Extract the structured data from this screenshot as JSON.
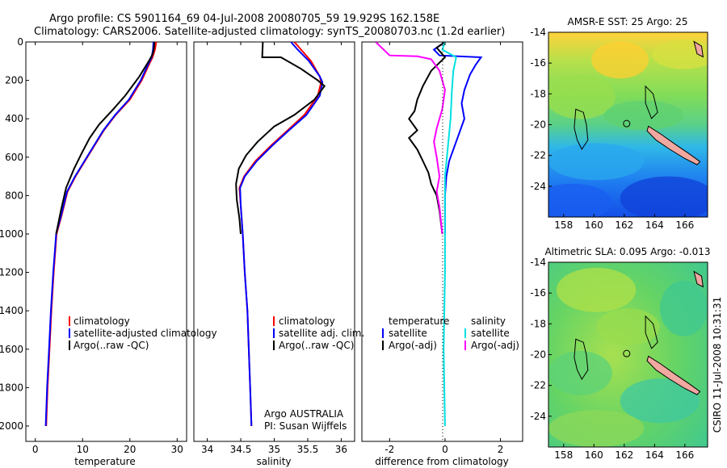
{
  "header": {
    "line1": "Argo profile: CS 5901164_69 04-Jul-2008 20080705_59 19.929S 162.158E",
    "line2": "Climatology: CARS2006. Satellite-adjusted climatology: synTS_20080703.nc (1.2d earlier)"
  },
  "footer": {
    "credit": "CSIRO 11-Jul-2008 10:31:31"
  },
  "chart_data": [
    {
      "id": "temperature",
      "type": "line",
      "xlabel": "temperature",
      "ylabel": "",
      "xlim": [
        -2,
        32
      ],
      "ylim": [
        2080,
        0
      ],
      "xticks": [
        0,
        10,
        20,
        30
      ],
      "yticks": [
        0,
        200,
        400,
        600,
        800,
        1000,
        1200,
        1400,
        1600,
        1800,
        2000
      ],
      "legend": {
        "placement": "lower-middle",
        "entries": [
          "climatology",
          "satellite-adjusted climatology",
          "Argo(..raw -QC)"
        ]
      },
      "series": [
        {
          "name": "climatology",
          "color": "#ff0000",
          "points": [
            [
              25.6,
              0
            ],
            [
              25.3,
              40
            ],
            [
              24.8,
              80
            ],
            [
              24.0,
              120
            ],
            [
              22.5,
              200
            ],
            [
              20.0,
              300
            ],
            [
              17.0,
              380
            ],
            [
              14.5,
              460
            ],
            [
              12.5,
              540
            ],
            [
              10.5,
              620
            ],
            [
              8.5,
              700
            ],
            [
              6.8,
              780
            ],
            [
              5.6,
              900
            ],
            [
              4.5,
              1000
            ],
            [
              3.9,
              1200
            ],
            [
              3.4,
              1400
            ],
            [
              3.0,
              1600
            ],
            [
              2.6,
              1800
            ],
            [
              2.3,
              2000
            ]
          ]
        },
        {
          "name": "satellite-adjusted climatology",
          "color": "#0000ff",
          "points": [
            [
              25.0,
              0
            ],
            [
              24.9,
              40
            ],
            [
              24.6,
              80
            ],
            [
              23.8,
              120
            ],
            [
              22.3,
              200
            ],
            [
              19.8,
              300
            ],
            [
              16.9,
              380
            ],
            [
              14.4,
              460
            ],
            [
              12.4,
              540
            ],
            [
              10.4,
              620
            ],
            [
              8.4,
              700
            ],
            [
              6.7,
              780
            ],
            [
              5.5,
              900
            ],
            [
              4.4,
              1000
            ],
            [
              3.8,
              1200
            ],
            [
              3.3,
              1400
            ],
            [
              2.9,
              1600
            ],
            [
              2.5,
              1800
            ],
            [
              2.2,
              2000
            ]
          ]
        },
        {
          "name": "Argo(..raw -QC)",
          "color": "#000000",
          "points": [
            [
              25.2,
              0
            ],
            [
              25.1,
              30
            ],
            [
              24.9,
              60
            ],
            [
              24.0,
              100
            ],
            [
              22.0,
              180
            ],
            [
              19.0,
              280
            ],
            [
              16.5,
              350
            ],
            [
              13.5,
              430
            ],
            [
              11.5,
              500
            ],
            [
              9.8,
              580
            ],
            [
              8.2,
              660
            ],
            [
              6.5,
              760
            ],
            [
              5.4,
              880
            ],
            [
              4.4,
              1000
            ]
          ]
        }
      ]
    },
    {
      "id": "salinity",
      "type": "line",
      "xlabel": "salinity",
      "ylabel": "",
      "xlim": [
        33.8,
        36.2
      ],
      "ylim": [
        2080,
        0
      ],
      "xticks": [
        34,
        34.5,
        35,
        35.5,
        36
      ],
      "yticks": [],
      "legend": {
        "placement": "lower-middle",
        "entries": [
          "climatology",
          "satellite adj. clim.",
          "Argo(..raw -QC)"
        ]
      },
      "annotation": [
        "Argo AUSTRALIA",
        "PI: Susan Wijffels"
      ],
      "series": [
        {
          "name": "climatology",
          "color": "#ff0000",
          "points": [
            [
              35.3,
              0
            ],
            [
              35.4,
              40
            ],
            [
              35.55,
              100
            ],
            [
              35.68,
              180
            ],
            [
              35.7,
              210
            ],
            [
              35.65,
              280
            ],
            [
              35.45,
              380
            ],
            [
              35.2,
              460
            ],
            [
              34.95,
              540
            ],
            [
              34.72,
              620
            ],
            [
              34.55,
              700
            ],
            [
              34.48,
              760
            ],
            [
              34.5,
              850
            ],
            [
              34.53,
              1000
            ],
            [
              34.56,
              1200
            ],
            [
              34.6,
              1400
            ],
            [
              34.62,
              1600
            ],
            [
              34.64,
              1800
            ],
            [
              34.66,
              2000
            ]
          ]
        },
        {
          "name": "satellite adj. clim.",
          "color": "#0000ff",
          "points": [
            [
              35.25,
              0
            ],
            [
              35.35,
              40
            ],
            [
              35.52,
              100
            ],
            [
              35.68,
              180
            ],
            [
              35.72,
              210
            ],
            [
              35.68,
              280
            ],
            [
              35.48,
              380
            ],
            [
              35.22,
              460
            ],
            [
              34.97,
              540
            ],
            [
              34.74,
              620
            ],
            [
              34.56,
              700
            ],
            [
              34.49,
              760
            ],
            [
              34.5,
              850
            ],
            [
              34.53,
              1000
            ],
            [
              34.56,
              1200
            ],
            [
              34.6,
              1400
            ],
            [
              34.62,
              1600
            ],
            [
              34.64,
              1800
            ],
            [
              34.66,
              2000
            ]
          ]
        },
        {
          "name": "Argo(..raw -QC)",
          "color": "#000000",
          "points": [
            [
              34.83,
              0
            ],
            [
              34.82,
              80
            ],
            [
              35.1,
              80
            ],
            [
              35.4,
              140
            ],
            [
              35.65,
              200
            ],
            [
              35.75,
              230
            ],
            [
              35.6,
              300
            ],
            [
              35.3,
              380
            ],
            [
              35.0,
              440
            ],
            [
              34.75,
              520
            ],
            [
              34.58,
              590
            ],
            [
              34.47,
              660
            ],
            [
              34.43,
              740
            ],
            [
              34.44,
              820
            ],
            [
              34.48,
              920
            ],
            [
              34.5,
              1000
            ]
          ]
        }
      ]
    },
    {
      "id": "difference",
      "type": "line",
      "xlabel": "difference from climatology",
      "ylabel": "",
      "xlim": [
        -3,
        2.8
      ],
      "ylim": [
        2080,
        0
      ],
      "xticks": [
        -2,
        0,
        2
      ],
      "yticks": [],
      "legend": {
        "placement": "lower-middle",
        "groups": [
          {
            "title": "temperature",
            "entries": [
              "satellite",
              "Argo(-adj)"
            ]
          },
          {
            "title": "salinity",
            "entries": [
              "satellite",
              "Argo(-adj)"
            ]
          }
        ]
      },
      "series": [
        {
          "name": "temperature satellite",
          "color": "#0000ff",
          "points": [
            [
              0,
              0
            ],
            [
              -0.4,
              40
            ],
            [
              -0.2,
              70
            ],
            [
              1.3,
              80
            ],
            [
              1.1,
              120
            ],
            [
              0.9,
              170
            ],
            [
              0.7,
              250
            ],
            [
              0.6,
              320
            ],
            [
              0.7,
              400
            ],
            [
              0.5,
              480
            ],
            [
              0.3,
              560
            ],
            [
              0.15,
              620
            ],
            [
              0.05,
              700
            ],
            [
              0.0,
              800
            ],
            [
              0.0,
              1000
            ]
          ]
        },
        {
          "name": "temperature Argo(-adj)",
          "color": "#000000",
          "points": [
            [
              0,
              0
            ],
            [
              -0.3,
              30
            ],
            [
              0.0,
              80
            ],
            [
              -0.5,
              150
            ],
            [
              -0.8,
              230
            ],
            [
              -1.0,
              300
            ],
            [
              -1.1,
              360
            ],
            [
              -1.3,
              400
            ],
            [
              -1.0,
              460
            ],
            [
              -1.3,
              500
            ],
            [
              -1.0,
              560
            ],
            [
              -0.8,
              620
            ],
            [
              -0.6,
              680
            ],
            [
              -0.5,
              740
            ],
            [
              -0.3,
              800
            ],
            [
              -0.2,
              880
            ],
            [
              -0.1,
              1000
            ]
          ]
        },
        {
          "name": "salinity satellite",
          "color": "#00e0e0",
          "points": [
            [
              0,
              0
            ],
            [
              -0.1,
              40
            ],
            [
              0.4,
              80
            ],
            [
              0.3,
              150
            ],
            [
              0.25,
              250
            ],
            [
              0.2,
              400
            ],
            [
              0.1,
              550
            ],
            [
              0.0,
              700
            ],
            [
              0.0,
              1200
            ],
            [
              -0.05,
              1600
            ],
            [
              0.0,
              2000
            ]
          ]
        },
        {
          "name": "salinity Argo(-adj)",
          "color": "#ff00ff",
          "points": [
            [
              -2.5,
              0
            ],
            [
              -2.0,
              70
            ],
            [
              -1.0,
              75
            ],
            [
              -0.5,
              90
            ],
            [
              -0.2,
              150
            ],
            [
              0.0,
              250
            ],
            [
              -0.1,
              350
            ],
            [
              -0.3,
              450
            ],
            [
              -0.4,
              520
            ],
            [
              -0.3,
              600
            ],
            [
              -0.2,
              700
            ],
            [
              -0.3,
              780
            ],
            [
              -0.2,
              860
            ],
            [
              -0.1,
              1000
            ]
          ]
        }
      ]
    },
    {
      "id": "sst-map",
      "type": "heatmap",
      "title": "AMSR-E SST: 25 Argo: 25",
      "xlim": [
        157,
        167.5
      ],
      "ylim": [
        -26,
        -14
      ],
      "xticks": [
        158,
        160,
        162,
        164,
        166
      ],
      "yticks": [
        -14,
        -16,
        -18,
        -20,
        -22,
        -24
      ],
      "marker": {
        "lon": 162.158,
        "lat": -19.929
      }
    },
    {
      "id": "sla-map",
      "type": "heatmap",
      "title": "Altimetric SLA: 0.095 Argo: -0.013",
      "xlim": [
        157,
        167.5
      ],
      "ylim": [
        -26,
        -14
      ],
      "xticks": [
        158,
        160,
        162,
        164,
        166
      ],
      "yticks": [
        -14,
        -16,
        -18,
        -20,
        -22,
        -24
      ],
      "marker": {
        "lon": 162.158,
        "lat": -19.929
      }
    }
  ]
}
